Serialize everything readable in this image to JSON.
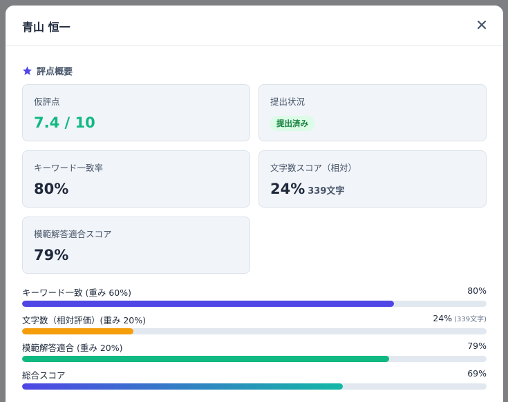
{
  "modal": {
    "title": "青山 恒一"
  },
  "section": {
    "title": "評点概要"
  },
  "cards": [
    {
      "label": "仮評点",
      "value": "7.4 / 10",
      "accent": "#10b981"
    },
    {
      "label": "提出状況",
      "badge": "提出済み"
    },
    {
      "label": "キーワード一致率",
      "value": "80%"
    },
    {
      "label": "文字数スコア（相対）",
      "value": "24%",
      "note": "339文字"
    },
    {
      "label": "模範解答適合スコア",
      "value": "79%"
    }
  ],
  "bars": [
    {
      "label": "キーワード一致 (重み 60%)",
      "value": 80,
      "value_label": "80%",
      "colors": [
        "#4f46e5"
      ]
    },
    {
      "label": "文字数（相対評価）(重み 20%)",
      "value": 24,
      "value_label": "24%",
      "note": "(339文字)",
      "colors": [
        "#f59e0b"
      ]
    },
    {
      "label": "模範解答適合 (重み 20%)",
      "value": 79,
      "value_label": "79%",
      "colors": [
        "#10b981"
      ]
    },
    {
      "label": "総合スコア",
      "value": 69,
      "value_label": "69%",
      "colors": [
        "#4f46e5",
        "#14b8a6"
      ]
    }
  ]
}
